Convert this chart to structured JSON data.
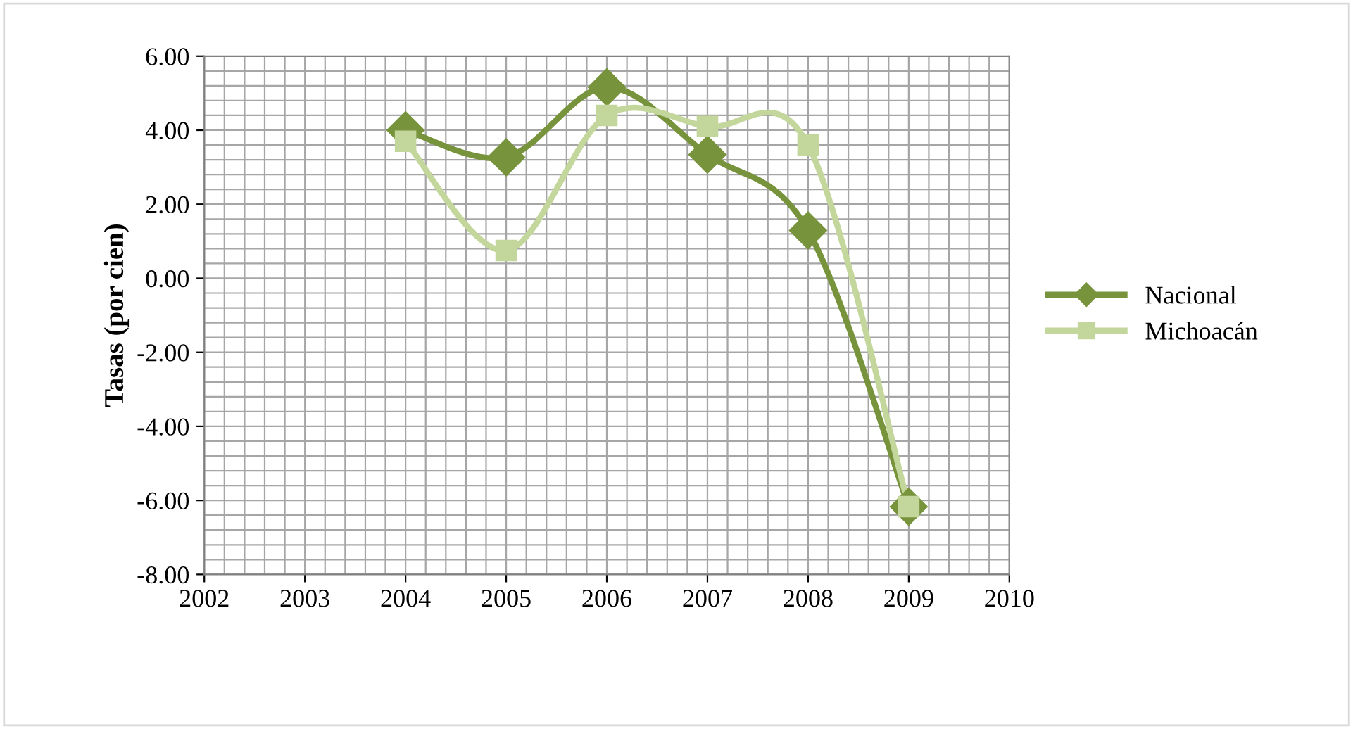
{
  "chart_data": {
    "type": "line",
    "ylabel": "Tasas (por cien)",
    "x": [
      2004,
      2005,
      2006,
      2007,
      2008,
      2009
    ],
    "series": [
      {
        "name": "Nacional",
        "color": "#77933c",
        "marker": "diamond",
        "values": [
          4.0,
          3.27,
          5.16,
          3.34,
          1.29,
          -6.17
        ]
      },
      {
        "name": "Michoacán",
        "color": "#c3d69b",
        "marker": "square",
        "values": [
          3.7,
          0.75,
          4.4,
          4.1,
          3.6,
          -6.17
        ]
      }
    ],
    "xlim": [
      2002,
      2010
    ],
    "xticks": [
      2002,
      2003,
      2004,
      2005,
      2006,
      2007,
      2008,
      2009,
      2010
    ],
    "ylim": [
      -8,
      6
    ],
    "yticks": [
      {
        "value": -8,
        "label": "-8.00"
      },
      {
        "value": -6,
        "label": "-6.00"
      },
      {
        "value": -4,
        "label": "-4.00"
      },
      {
        "value": -2,
        "label": "-2.00"
      },
      {
        "value": 0,
        "label": "0.00"
      },
      {
        "value": 2,
        "label": "2.00"
      },
      {
        "value": 4,
        "label": "4.00"
      },
      {
        "value": 6,
        "label": "6.00"
      }
    ],
    "grid": true,
    "legend": "right"
  }
}
